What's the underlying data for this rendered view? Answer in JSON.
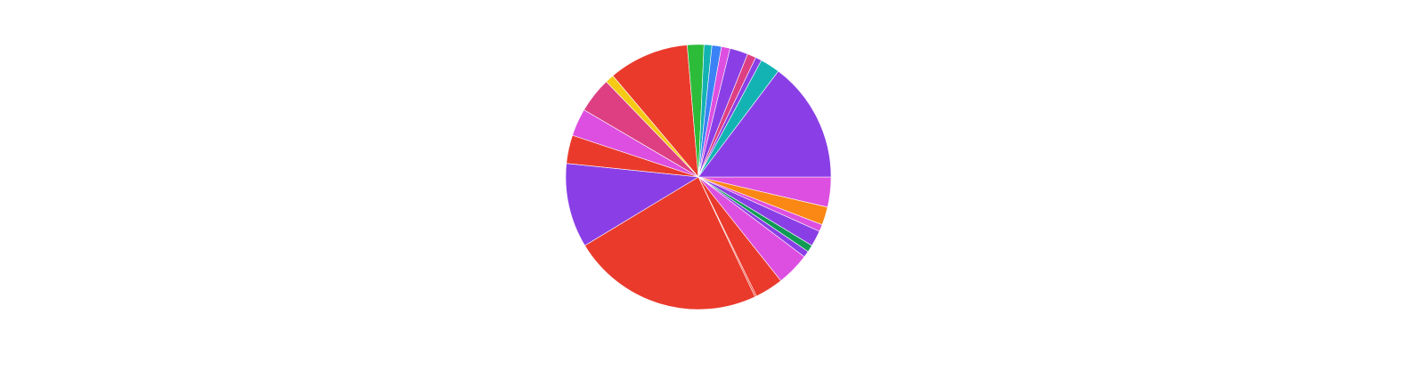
{
  "chart_data": {
    "type": "pie",
    "title": "",
    "legend": "none",
    "start_angle_deg": 0,
    "direction": "clockwise",
    "slices": [
      {
        "value": 3.8,
        "color": "#dd4fe0"
      },
      {
        "value": 2.3,
        "color": "#fb8714"
      },
      {
        "value": 0.9,
        "color": "#dd4fe0"
      },
      {
        "value": 2.0,
        "color": "#8a3fe6"
      },
      {
        "value": 0.9,
        "color": "#109b54"
      },
      {
        "value": 0.8,
        "color": "#8a3fe6"
      },
      {
        "value": 4.2,
        "color": "#dd4fe0"
      },
      {
        "value": 3.6,
        "color": "#ea3a2c"
      },
      {
        "value": 0.2,
        "color": "#ea3a2c"
      },
      {
        "value": 24.3,
        "color": "#ea3a2c"
      },
      {
        "value": 10.7,
        "color": "#8a3fe6"
      },
      {
        "value": 3.6,
        "color": "#ea3a2c"
      },
      {
        "value": 3.5,
        "color": "#dd4fe0"
      },
      {
        "value": 4.5,
        "color": "#dd3f82"
      },
      {
        "value": 1.1,
        "color": "#f6c915"
      },
      {
        "value": 10.2,
        "color": "#ea3a2c"
      },
      {
        "value": 2.1,
        "color": "#2dbb3a"
      },
      {
        "value": 1.0,
        "color": "#14b3b3"
      },
      {
        "value": 1.2,
        "color": "#3b82f6"
      },
      {
        "value": 1.1,
        "color": "#dd4fe0"
      },
      {
        "value": 2.3,
        "color": "#8a3fe6"
      },
      {
        "value": 1.1,
        "color": "#dd3f82"
      },
      {
        "value": 0.8,
        "color": "#8a3fe6"
      },
      {
        "value": 2.5,
        "color": "#14b3b3"
      },
      {
        "value": 15.3,
        "color": "#8a3fe6"
      }
    ]
  }
}
